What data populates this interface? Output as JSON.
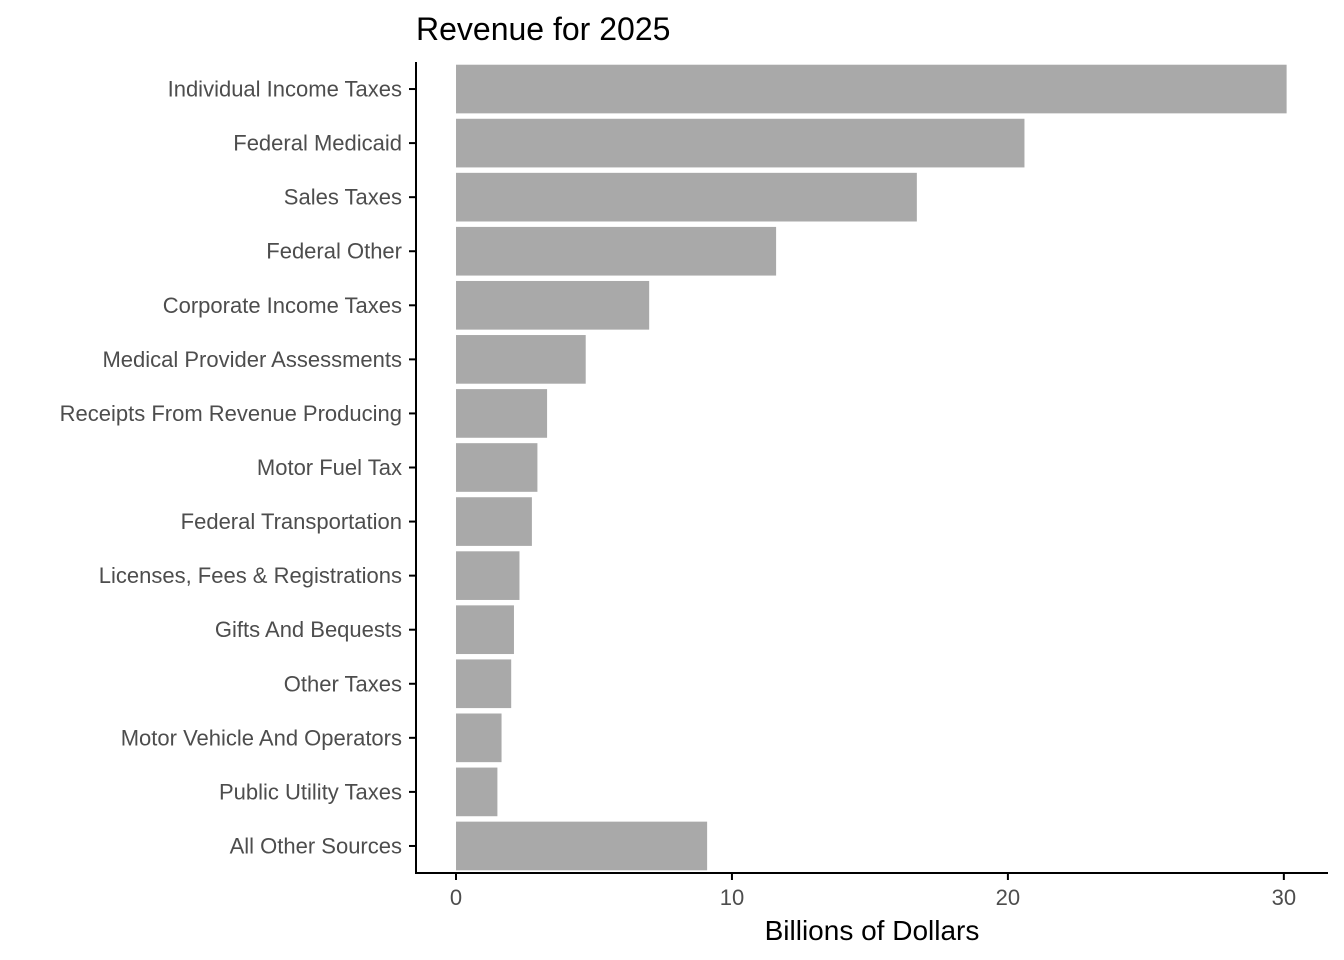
{
  "chart_data": {
    "type": "bar",
    "orientation": "horizontal",
    "title": "Revenue for 2025",
    "xlabel": "Billions of Dollars",
    "ylabel": "",
    "categories": [
      "Individual Income Taxes",
      "Federal Medicaid",
      "Sales Taxes",
      "Federal Other",
      "Corporate Income Taxes",
      "Medical Provider Assessments",
      "Receipts From Revenue Producing",
      "Motor Fuel Tax",
      "Federal Transportation",
      "Licenses, Fees & Registrations",
      "Gifts And Bequests",
      "Other Taxes",
      "Motor Vehicle And Operators",
      "Public Utility Taxes",
      "All Other Sources"
    ],
    "values": [
      30.1,
      20.6,
      16.7,
      11.6,
      7.0,
      4.7,
      3.3,
      2.95,
      2.75,
      2.3,
      2.1,
      2.0,
      1.65,
      1.5,
      9.1
    ],
    "xlim": [
      -1.45,
      31.6
    ],
    "xticks": [
      0,
      10,
      20,
      30
    ],
    "grid": false,
    "legend": "none",
    "bar_color": "#a9a9a9",
    "axis_color": "#000000",
    "tick_label_color": "#4d4d4d"
  }
}
